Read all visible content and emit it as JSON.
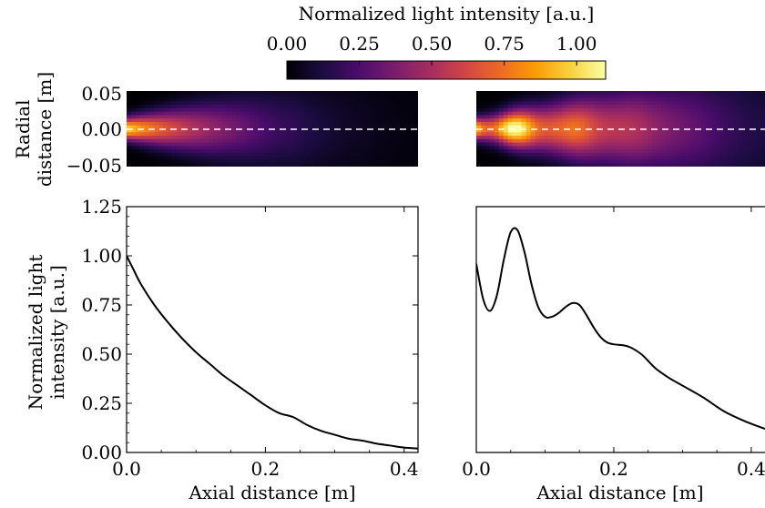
{
  "colorbar": {
    "title": "Normalized light intensity [a.u.]",
    "ticks": [
      0.0,
      0.25,
      0.5,
      0.75,
      1.0
    ],
    "tick_labels": [
      "0.00",
      "0.25",
      "0.50",
      "0.75",
      "1.00"
    ],
    "range": [
      0.0,
      1.1
    ],
    "colormap": "inferno-like",
    "stops": [
      "#000004",
      "#1b0c41",
      "#4a0c6b",
      "#781c6d",
      "#a52c60",
      "#cf4446",
      "#ed6925",
      "#fb9b06",
      "#f7d13d",
      "#fcffa4"
    ]
  },
  "heatmap_axes": {
    "ylabel_line1": "Radial",
    "ylabel_line2": "distance [m]",
    "ytick_labels": [
      "0.05",
      "0.00",
      "−0.05"
    ],
    "centerline": "dashed white"
  },
  "line_axes": {
    "ylabel_line1": "Normalized light",
    "ylabel_line2": "intensity [a.u.]",
    "ytick_labels": [
      "0.00",
      "0.25",
      "0.50",
      "0.75",
      "1.00",
      "1.25"
    ],
    "xlabel_left": "Axial distance [m]",
    "xlabel_right": "Axial distance [m]",
    "xtick_labels_left": [
      "0.0",
      "0.2",
      "0.4"
    ],
    "xtick_labels_right": [
      "0.0",
      "0.2",
      "0.4"
    ]
  },
  "chart_data": [
    {
      "type": "heatmap",
      "panel": "top-left",
      "xlim": [
        0.0,
        0.42
      ],
      "ylim": [
        -0.05,
        0.05
      ],
      "hotspots": [
        {
          "x": 0.0,
          "intensity": 1.0
        }
      ],
      "decay": "exponential along axis"
    },
    {
      "type": "heatmap",
      "panel": "top-right",
      "xlim": [
        0.0,
        0.42
      ],
      "ylim": [
        -0.05,
        0.05
      ],
      "hotspots": [
        {
          "x": 0.06,
          "intensity": 1.12
        },
        {
          "x": 0.15,
          "intensity": 0.75
        },
        {
          "x": 0.23,
          "intensity": 0.54
        }
      ]
    },
    {
      "type": "line",
      "panel": "bottom-left",
      "xlim": [
        0.0,
        0.42
      ],
      "ylim": [
        0.0,
        1.25
      ],
      "x": [
        0.0,
        0.01,
        0.02,
        0.04,
        0.06,
        0.08,
        0.1,
        0.12,
        0.14,
        0.16,
        0.18,
        0.2,
        0.22,
        0.24,
        0.26,
        0.28,
        0.3,
        0.32,
        0.34,
        0.36,
        0.38,
        0.4,
        0.42
      ],
      "y": [
        1.0,
        0.93,
        0.86,
        0.75,
        0.66,
        0.58,
        0.51,
        0.45,
        0.39,
        0.34,
        0.29,
        0.24,
        0.2,
        0.18,
        0.14,
        0.11,
        0.09,
        0.07,
        0.06,
        0.045,
        0.035,
        0.025,
        0.02
      ]
    },
    {
      "type": "line",
      "panel": "bottom-right",
      "xlim": [
        0.0,
        0.42
      ],
      "ylim": [
        0.0,
        1.25
      ],
      "x": [
        0.0,
        0.01,
        0.02,
        0.03,
        0.04,
        0.05,
        0.06,
        0.07,
        0.08,
        0.09,
        0.1,
        0.11,
        0.12,
        0.13,
        0.14,
        0.15,
        0.16,
        0.17,
        0.18,
        0.19,
        0.2,
        0.22,
        0.24,
        0.26,
        0.28,
        0.3,
        0.33,
        0.36,
        0.39,
        0.42
      ],
      "y": [
        0.96,
        0.78,
        0.72,
        0.8,
        0.98,
        1.12,
        1.13,
        1.02,
        0.86,
        0.74,
        0.69,
        0.69,
        0.71,
        0.74,
        0.76,
        0.75,
        0.7,
        0.64,
        0.59,
        0.56,
        0.55,
        0.54,
        0.5,
        0.43,
        0.38,
        0.34,
        0.28,
        0.21,
        0.16,
        0.12
      ]
    }
  ]
}
